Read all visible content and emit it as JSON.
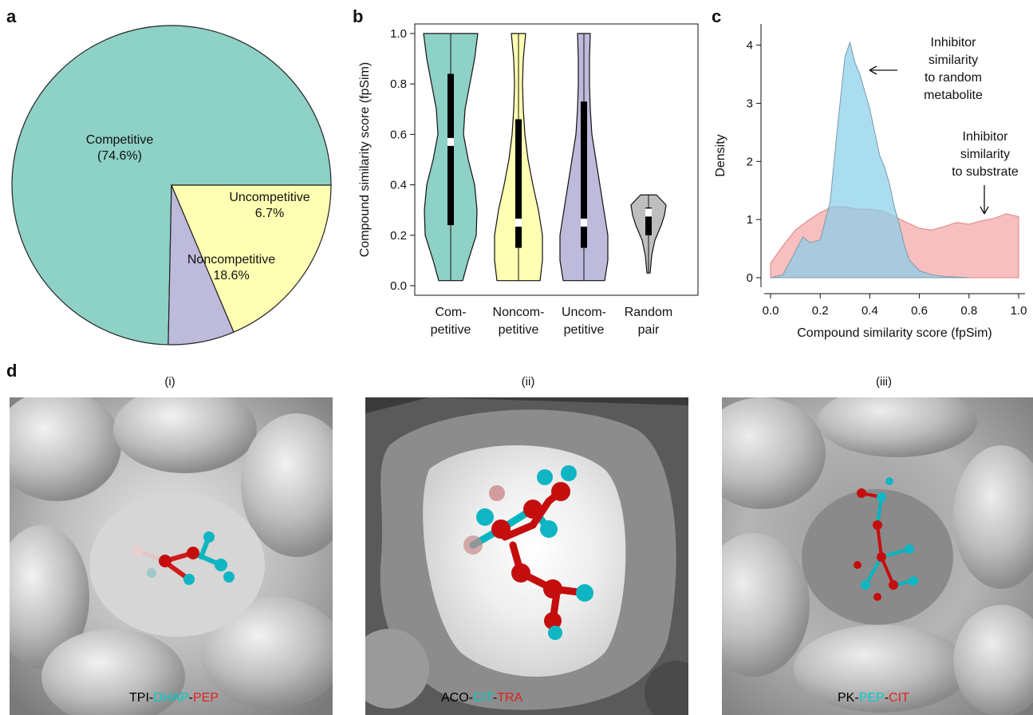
{
  "panels": {
    "a": {
      "letter": "a",
      "chart_data": {
        "type": "pie",
        "categories": [
          "Competitive",
          "Uncompetitive",
          "Noncompetitive"
        ],
        "values": [
          74.6,
          6.7,
          18.6
        ],
        "labels": [
          [
            "Competitive",
            "(74.6%)"
          ],
          [
            "Uncompetitive",
            "6.7%"
          ],
          [
            "Noncompetitive",
            "18.6%"
          ]
        ],
        "colors": [
          "#8ed1c6",
          "#bdbadb",
          "#ffffb3"
        ]
      }
    },
    "b": {
      "letter": "b",
      "chart_data": {
        "type": "violin",
        "categories": [
          [
            "Com-",
            "petitive"
          ],
          [
            "Noncom-",
            "petitive"
          ],
          [
            "Uncom-",
            "petitive"
          ],
          [
            "Random",
            "pair"
          ]
        ],
        "ylabel": "Compound similarity score (fpSim)",
        "ylim": [
          0,
          1
        ],
        "yticks": [
          "0.0",
          "0.2",
          "0.4",
          "0.6",
          "0.8",
          "1.0"
        ],
        "series": [
          {
            "color": "#8ed1c6",
            "min": 0.02,
            "q1": 0.24,
            "median": 0.57,
            "q3": 0.84,
            "max": 1.0
          },
          {
            "color": "#ffffb3",
            "min": 0.02,
            "q1": 0.15,
            "median": 0.25,
            "q3": 0.66,
            "max": 1.0
          },
          {
            "color": "#bdbadb",
            "min": 0.02,
            "q1": 0.15,
            "median": 0.25,
            "q3": 0.73,
            "max": 1.0
          },
          {
            "color": "#bebebe",
            "min": 0.05,
            "q1": 0.2,
            "median": 0.29,
            "q3": 0.31,
            "max": 0.36
          }
        ]
      }
    },
    "c": {
      "letter": "c",
      "chart_data": {
        "type": "area",
        "xlabel": "Compound similarity score (fpSim)",
        "ylabel": "Density",
        "xlim": [
          0,
          1
        ],
        "ylim": [
          0,
          4.2
        ],
        "xticks": [
          "0.0",
          "0.2",
          "0.4",
          "0.6",
          "0.8",
          "1.0"
        ],
        "yticks": [
          "0",
          "1",
          "2",
          "3",
          "4"
        ],
        "series": [
          {
            "color": "#87ceeb",
            "x": [
              0.0,
              0.05,
              0.1,
              0.13,
              0.16,
              0.2,
              0.24,
              0.27,
              0.3,
              0.32,
              0.34,
              0.36,
              0.38,
              0.4,
              0.42,
              0.44,
              0.46,
              0.48,
              0.5,
              0.52,
              0.54,
              0.56,
              0.6,
              0.65,
              0.7,
              0.75,
              0.8
            ],
            "y": [
              0.0,
              0.05,
              0.45,
              0.7,
              0.6,
              0.65,
              1.3,
              2.6,
              3.8,
              4.05,
              3.7,
              3.5,
              3.2,
              2.9,
              2.5,
              2.1,
              1.9,
              1.6,
              1.2,
              0.9,
              0.55,
              0.3,
              0.12,
              0.05,
              0.02,
              0.01,
              0.0
            ]
          },
          {
            "color": "#f08080",
            "x": [
              0.0,
              0.05,
              0.1,
              0.15,
              0.2,
              0.25,
              0.3,
              0.35,
              0.4,
              0.45,
              0.5,
              0.55,
              0.6,
              0.65,
              0.7,
              0.75,
              0.8,
              0.85,
              0.9,
              0.95,
              1.0
            ],
            "y": [
              0.25,
              0.55,
              0.82,
              0.98,
              1.12,
              1.22,
              1.22,
              1.18,
              1.18,
              1.15,
              1.05,
              0.95,
              0.85,
              0.82,
              0.88,
              0.95,
              0.92,
              0.98,
              1.02,
              1.1,
              1.05
            ]
          }
        ],
        "annotations": [
          [
            "Inhibitor",
            "similarity",
            "to random",
            "metabolite"
          ],
          [
            "Inhibitor",
            "similarity",
            "to substrate"
          ]
        ]
      }
    },
    "d": {
      "letter": "d",
      "renderings": [
        {
          "roman": "(i)",
          "label_parts": [
            "TPI-",
            "DHAP",
            "-",
            "PEP"
          ],
          "label_colors": [
            "#000000",
            "#00cccc",
            "#000000",
            "#e02020"
          ]
        },
        {
          "roman": "(ii)",
          "label_parts": [
            "ACO-",
            "CIT",
            "-",
            "TRA"
          ],
          "label_colors": [
            "#000000",
            "#00cccc",
            "#000000",
            "#e02020"
          ]
        },
        {
          "roman": "(iii)",
          "label_parts": [
            "PK-",
            "PEP",
            "-",
            "CIT"
          ],
          "label_colors": [
            "#000000",
            "#00cccc",
            "#000000",
            "#e02020"
          ]
        }
      ]
    }
  }
}
